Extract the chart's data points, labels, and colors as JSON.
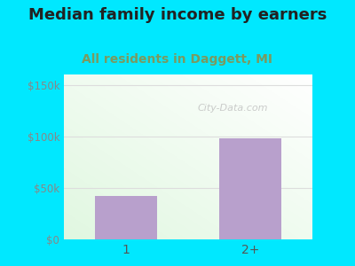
{
  "title": "Median family income by earners",
  "subtitle": "All residents in Daggett, MI",
  "categories": [
    "1",
    "2+"
  ],
  "values": [
    42000,
    98000
  ],
  "bar_color": "#b8a0cc",
  "background_outer": "#00e8ff",
  "yticks": [
    0,
    50000,
    100000,
    150000
  ],
  "ytick_labels": [
    "$0",
    "$50k",
    "$100k",
    "$150k"
  ],
  "ylim": [
    0,
    160000
  ],
  "title_fontsize": 13,
  "subtitle_fontsize": 10,
  "subtitle_color": "#7a9a60",
  "title_color": "#222222",
  "tick_label_color": "#888888",
  "xtick_label_color": "#555555",
  "watermark": "City-Data.com",
  "bar_width": 0.5,
  "grid_color": "#dddddd"
}
